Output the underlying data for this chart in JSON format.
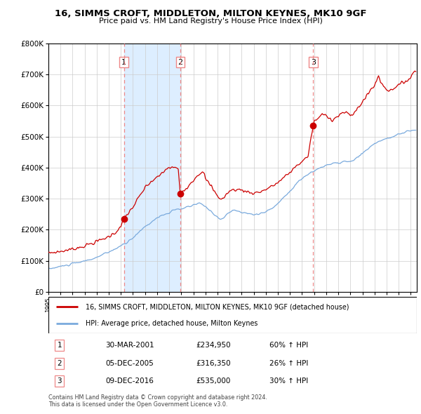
{
  "title1": "16, SIMMS CROFT, MIDDLETON, MILTON KEYNES, MK10 9GF",
  "title2": "Price paid vs. HM Land Registry's House Price Index (HPI)",
  "legend1": "16, SIMMS CROFT, MIDDLETON, MILTON KEYNES, MK10 9GF (detached house)",
  "legend2": "HPI: Average price, detached house, Milton Keynes",
  "footer1": "Contains HM Land Registry data © Crown copyright and database right 2024.",
  "footer2": "This data is licensed under the Open Government Licence v3.0.",
  "transactions": [
    {
      "num": 1,
      "date": "30-MAR-2001",
      "price": 234950,
      "pct": "60%",
      "year": 2001.25
    },
    {
      "num": 2,
      "date": "05-DEC-2005",
      "price": 316350,
      "pct": "26%",
      "year": 2005.92
    },
    {
      "num": 3,
      "date": "09-DEC-2016",
      "price": 535000,
      "pct": "30%",
      "year": 2016.92
    }
  ],
  "hpi_color": "#7aaadd",
  "price_color": "#cc0000",
  "bg_color": "#ddeeff",
  "sale_marker_color": "#cc0000",
  "vline_color": "#ee8888",
  "grid_color": "#cccccc",
  "ylim_max": 800000,
  "xlim_start": 1995.25,
  "xlim_end": 2025.5
}
